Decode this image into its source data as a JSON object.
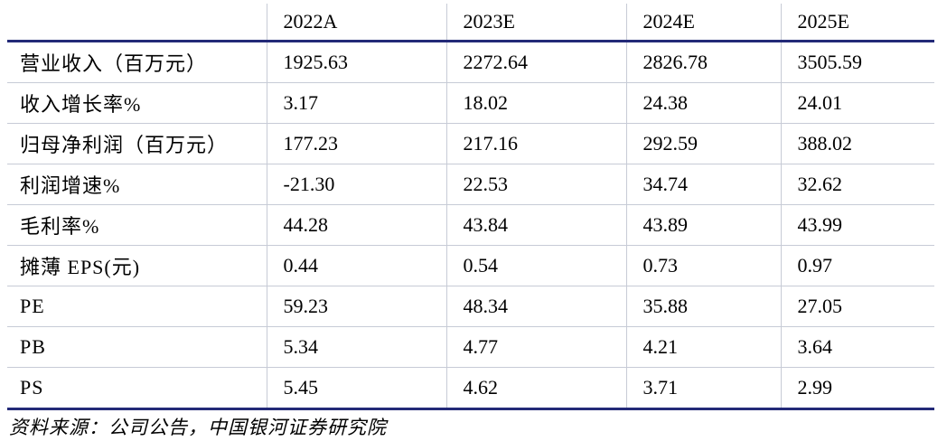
{
  "table": {
    "headers": [
      "",
      "2022A",
      "2023E",
      "2024E",
      "2025E"
    ],
    "rows": [
      {
        "metric": "营业收入（百万元）",
        "values": [
          "1925.63",
          "2272.64",
          "2826.78",
          "3505.59"
        ]
      },
      {
        "metric": "收入增长率%",
        "values": [
          "3.17",
          "18.02",
          "24.38",
          "24.01"
        ]
      },
      {
        "metric": "归母净利润（百万元）",
        "values": [
          "177.23",
          "217.16",
          "292.59",
          "388.02"
        ]
      },
      {
        "metric": "利润增速%",
        "values": [
          "-21.30",
          "22.53",
          "34.74",
          "32.62"
        ]
      },
      {
        "metric": "毛利率%",
        "values": [
          "44.28",
          "43.84",
          "43.89",
          "43.99"
        ]
      },
      {
        "metric": "摊薄 EPS(元)",
        "values": [
          "0.44",
          "0.54",
          "0.73",
          "0.97"
        ]
      },
      {
        "metric": "PE",
        "values": [
          "59.23",
          "48.34",
          "35.88",
          "27.05"
        ]
      },
      {
        "metric": "PB",
        "values": [
          "5.34",
          "4.77",
          "4.21",
          "3.64"
        ]
      },
      {
        "metric": "PS",
        "values": [
          "5.45",
          "4.62",
          "3.71",
          "2.99"
        ]
      }
    ]
  },
  "source": "资料来源：公司公告，中国银河证券研究院",
  "colors": {
    "rule": "#232a78",
    "grid": "#c7cbd6"
  }
}
